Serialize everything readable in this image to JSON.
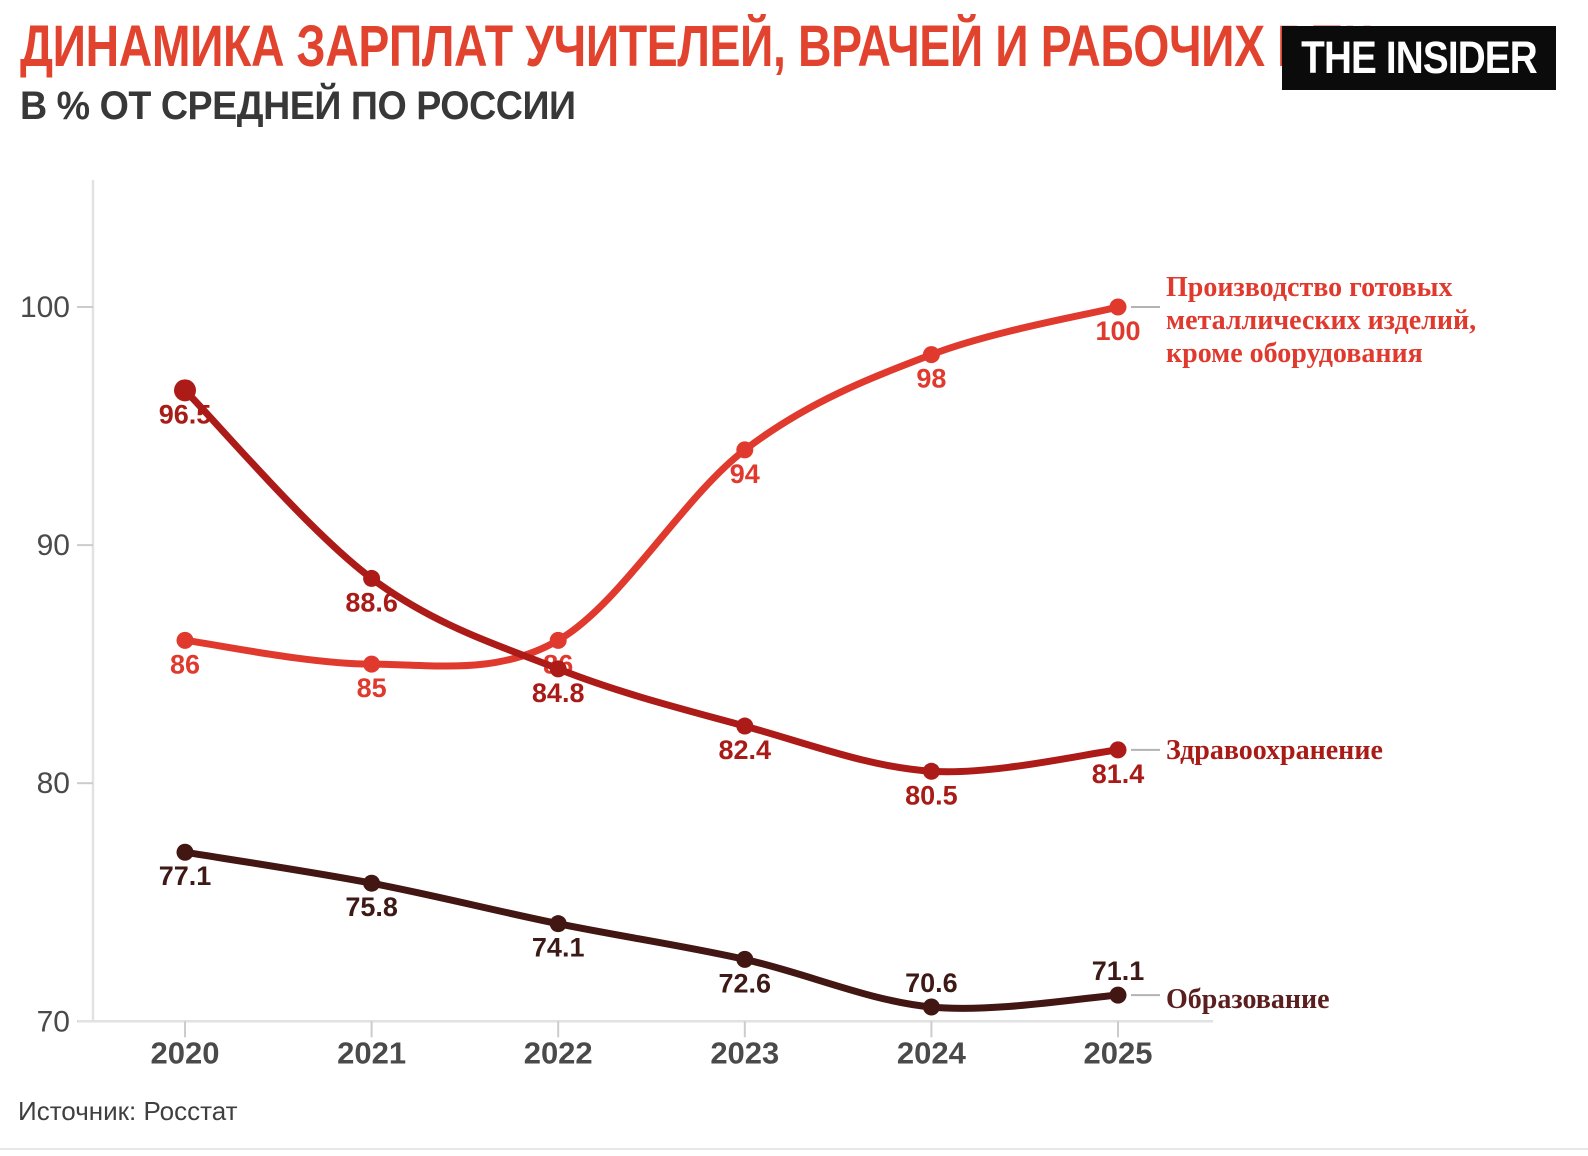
{
  "header": {
    "title": "ДИНАМИКА ЗАРПЛАТ УЧИТЕЛЕЙ, ВРАЧЕЙ И РАБОЧИХ ВПК",
    "subtitle": "В % ОТ СРЕДНЕЙ ПО РОССИИ",
    "logo": "THE INSIDER"
  },
  "footer": {
    "source": "Источник: Росстат"
  },
  "colors": {
    "title": "#E1432E",
    "subtitle": "#383838",
    "logo_bg": "#0B0B0B",
    "logo_text": "#FFFFFF",
    "axis_line": "#E2E2E2",
    "tick": "#CCCCCC",
    "axis_text": "#4A4A4A",
    "connector": "#B3B3B3",
    "source_text": "#3F3F3F",
    "bottom_rule": "#E7E7E7"
  },
  "chart_data": {
    "type": "line",
    "title": "ДИНАМИКА ЗАРПЛАТ УЧИТЕЛЕЙ, ВРАЧЕЙ И РАБОЧИХ ВПК",
    "subtitle": "В % ОТ СРЕДНЕЙ ПО РОССИИ",
    "categories": [
      "2020",
      "2021",
      "2022",
      "2023",
      "2024",
      "2025"
    ],
    "yticks": [
      "100",
      "90",
      "80",
      "70"
    ],
    "ylim": [
      70,
      103
    ],
    "grid": false,
    "legend_position": "right-of-line-ends",
    "series": [
      {
        "id": "prod",
        "name": "Производство готовых металлических изделий, кроме оборудования",
        "name_lines": [
          "Производство готовых",
          "металлических изделий,",
          "кроме оборудования"
        ],
        "name_dy": [
          -11,
          22,
          55
        ],
        "color": "#E0392D",
        "value_color": "#E0392D",
        "name_color": "#E0392D",
        "values": [
          86,
          85,
          86,
          94,
          98,
          100
        ],
        "label_pos": [
          "below",
          "below",
          "below",
          "below",
          "below",
          "below"
        ]
      },
      {
        "id": "health",
        "name": "Здравоохранение",
        "name_lines": [
          "Здравоохранение"
        ],
        "name_dy": [
          9
        ],
        "color": "#AC1B18",
        "value_color": "#A81B17",
        "name_color": "#A81B17",
        "values": [
          96.5,
          88.6,
          84.8,
          82.4,
          80.5,
          81.4
        ],
        "label_pos": [
          "below",
          "below",
          "below",
          "below",
          "below",
          "below"
        ],
        "first_point_large": true
      },
      {
        "id": "edu",
        "name": "Образование",
        "name_lines": [
          "Образование"
        ],
        "name_dy": [
          13
        ],
        "color": "#421713",
        "value_color": "#3E1A16",
        "name_color": "#5B1F1F",
        "values": [
          77.1,
          75.8,
          74.1,
          72.6,
          70.6,
          71.1
        ],
        "label_pos": [
          "below",
          "below",
          "below",
          "below",
          "above",
          "above"
        ]
      }
    ]
  }
}
